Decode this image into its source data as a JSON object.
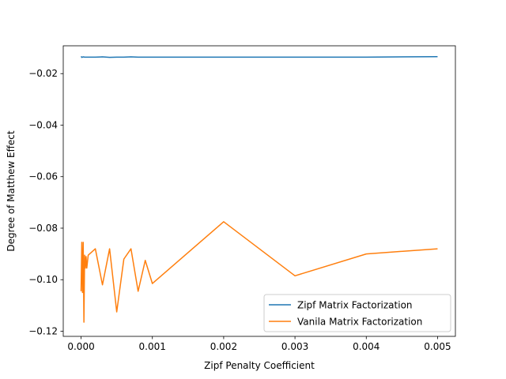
{
  "chart_data": {
    "type": "line",
    "title": "",
    "xlabel": "Zipf Penalty Coefficient",
    "ylabel": "Degree of Matthew Effect",
    "xlim": [
      -0.00025,
      0.00525
    ],
    "ylim": [
      -0.122,
      -0.0092
    ],
    "xticks": [
      0.0,
      0.001,
      0.002,
      0.003,
      0.004,
      0.005
    ],
    "xtick_labels": [
      "0.000",
      "0.001",
      "0.002",
      "0.003",
      "0.004",
      "0.005"
    ],
    "yticks": [
      -0.12,
      -0.1,
      -0.08,
      -0.06,
      -0.04,
      -0.02
    ],
    "ytick_labels": [
      "−0.12",
      "−0.10",
      "−0.08",
      "−0.06",
      "−0.04",
      "−0.02"
    ],
    "grid": false,
    "legend_position": "lower-right",
    "series": [
      {
        "name": "Zipf Matrix Factorization",
        "color": "#1f77b4",
        "x": [
          0.0,
          1e-05,
          3e-05,
          5e-05,
          0.0001,
          0.0002,
          0.0003,
          0.0004,
          0.0005,
          0.0006,
          0.0007,
          0.0008,
          0.0009,
          0.001,
          0.002,
          0.003,
          0.004,
          0.005
        ],
        "y": [
          -0.0133,
          -0.0137,
          -0.0135,
          -0.0136,
          -0.0136,
          -0.0136,
          -0.0135,
          -0.0137,
          -0.0136,
          -0.0136,
          -0.0135,
          -0.0136,
          -0.0136,
          -0.0136,
          -0.0136,
          -0.0136,
          -0.0136,
          -0.0134
        ]
      },
      {
        "name": "Vanila Matrix Factorization",
        "color": "#ff7f0e",
        "x": [
          0.0,
          1e-05,
          2e-05,
          3e-05,
          4e-05,
          5e-05,
          6e-05,
          7e-05,
          8e-05,
          0.0001,
          0.0002,
          0.0003,
          0.0004,
          0.0005,
          0.0006,
          0.0007,
          0.0008,
          0.0009,
          0.001,
          0.002,
          0.003,
          0.004,
          0.005
        ],
        "y": [
          -0.1045,
          -0.0855,
          -0.105,
          -0.0855,
          -0.1165,
          -0.0905,
          -0.0955,
          -0.091,
          -0.0955,
          -0.0905,
          -0.088,
          -0.102,
          -0.088,
          -0.1125,
          -0.092,
          -0.088,
          -0.1045,
          -0.0925,
          -0.1015,
          -0.0775,
          -0.0985,
          -0.09,
          -0.088
        ]
      }
    ]
  }
}
